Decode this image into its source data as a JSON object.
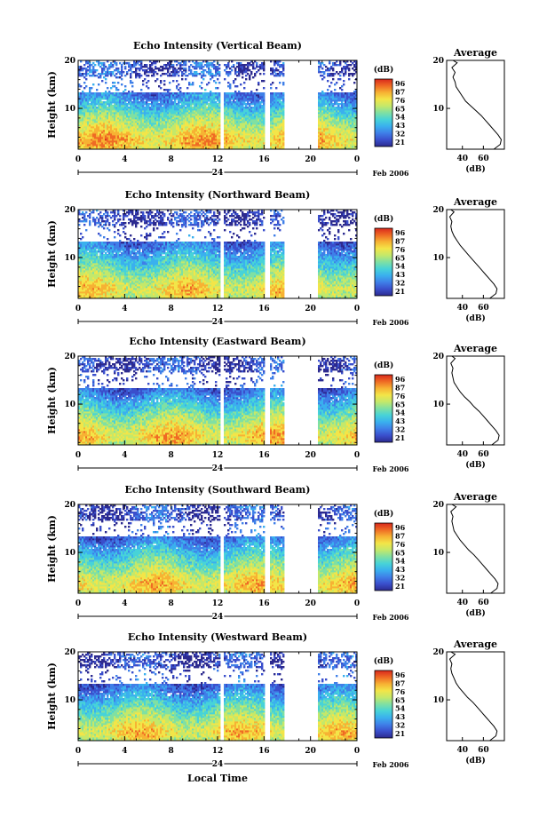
{
  "figure": {
    "xlabel": "Local Time",
    "colors": [
      "#2c2a8f",
      "#3a4fcc",
      "#3f7fe8",
      "#3ab0ee",
      "#47d3d8",
      "#7fe0a3",
      "#c4e86a",
      "#f3e548",
      "#f7b233",
      "#ef6a24",
      "#d9281c"
    ]
  },
  "chart_data": [
    {
      "type": "heatmap",
      "title": "Echo Intensity (Vertical Beam)",
      "ylabel": "Height (km)",
      "xticks": [
        "0",
        "4",
        "8",
        "12",
        "16",
        "20",
        "0"
      ],
      "xlim": [
        0,
        24
      ],
      "yticks": [
        "10",
        "20"
      ],
      "ylim": [
        1.5,
        20
      ],
      "date_day": "24",
      "date_month": "Feb 2006",
      "colorbar_label": "(dB)",
      "colorbar_ticks": [
        "96",
        "87",
        "76",
        "65",
        "54",
        "43",
        "32",
        "21"
      ],
      "no_data_gaps_h": [
        [
          12.2,
          12.6
        ],
        [
          16.1,
          16.5
        ],
        [
          17.7,
          20.7
        ]
      ],
      "profile_title": "Average",
      "profile_xticks": [
        "40",
        "60"
      ],
      "profile_xlabel": "(dB)",
      "profile_yticks": [
        "10",
        "20"
      ],
      "profile_xlim": [
        25,
        80
      ],
      "profile": {
        "heights_km": [
          1.5,
          2.5,
          3.5,
          4.5,
          5.5,
          6.5,
          7.5,
          8.5,
          9.5,
          10.5,
          11.5,
          12.5,
          13.5,
          14.5,
          15.5,
          16.5,
          17.5,
          18.5,
          19.5,
          20
        ],
        "values_db": [
          70,
          76,
          77,
          74,
          70,
          66,
          62,
          58,
          53,
          48,
          43,
          40,
          37,
          34,
          33,
          31,
          33,
          30,
          35,
          31
        ]
      }
    },
    {
      "type": "heatmap",
      "title": "Echo Intensity (Northward Beam)",
      "ylabel": "Height (km)",
      "xticks": [
        "0",
        "4",
        "8",
        "12",
        "16",
        "20",
        "0"
      ],
      "xlim": [
        0,
        24
      ],
      "yticks": [
        "10",
        "20"
      ],
      "ylim": [
        1.5,
        20
      ],
      "date_day": "24",
      "date_month": "Feb 2006",
      "colorbar_label": "(dB)",
      "colorbar_ticks": [
        "96",
        "87",
        "76",
        "65",
        "54",
        "43",
        "32",
        "21"
      ],
      "no_data_gaps_h": [
        [
          12.2,
          12.6
        ],
        [
          16.1,
          16.5
        ],
        [
          17.7,
          20.7
        ]
      ],
      "profile_title": "Average",
      "profile_xticks": [
        "40",
        "60"
      ],
      "profile_xlabel": "(dB)",
      "profile_yticks": [
        "10",
        "20"
      ],
      "profile_xlim": [
        25,
        80
      ],
      "profile": {
        "heights_km": [
          1.5,
          2.5,
          3.5,
          4.5,
          5.5,
          6.5,
          7.5,
          8.5,
          9.5,
          10.5,
          11.5,
          12.5,
          13.5,
          14.5,
          15.5,
          16.5,
          17.5,
          18.5,
          19.5,
          20
        ],
        "values_db": [
          66,
          72,
          73,
          70,
          66,
          62,
          58,
          54,
          50,
          46,
          42,
          38,
          35,
          32,
          30,
          29,
          30,
          28,
          32,
          29
        ]
      }
    },
    {
      "type": "heatmap",
      "title": "Echo Intensity (Eastward Beam)",
      "ylabel": "Height (km)",
      "xticks": [
        "0",
        "4",
        "8",
        "12",
        "16",
        "20",
        "0"
      ],
      "xlim": [
        0,
        24
      ],
      "yticks": [
        "10",
        "20"
      ],
      "ylim": [
        1.5,
        20
      ],
      "date_day": "24",
      "date_month": "Feb 2006",
      "colorbar_label": "(dB)",
      "colorbar_ticks": [
        "96",
        "87",
        "76",
        "65",
        "54",
        "43",
        "32",
        "21"
      ],
      "no_data_gaps_h": [
        [
          12.2,
          12.6
        ],
        [
          16.1,
          16.5
        ],
        [
          17.7,
          20.7
        ]
      ],
      "profile_title": "Average",
      "profile_xticks": [
        "40",
        "60"
      ],
      "profile_xlabel": "(dB)",
      "profile_yticks": [
        "10",
        "20"
      ],
      "profile_xlim": [
        25,
        80
      ],
      "profile": {
        "heights_km": [
          1.5,
          2.5,
          3.5,
          4.5,
          5.5,
          6.5,
          7.5,
          8.5,
          9.5,
          10.5,
          11.5,
          12.5,
          13.5,
          14.5,
          15.5,
          16.5,
          17.5,
          18.5,
          19.5,
          20
        ],
        "values_db": [
          68,
          74,
          75,
          72,
          68,
          64,
          60,
          56,
          51,
          47,
          42,
          38,
          35,
          32,
          31,
          30,
          31,
          29,
          33,
          30
        ]
      }
    },
    {
      "type": "heatmap",
      "title": "Echo Intensity (Southward Beam)",
      "ylabel": "Height (km)",
      "xticks": [
        "0",
        "4",
        "8",
        "12",
        "16",
        "20",
        "0"
      ],
      "xlim": [
        0,
        24
      ],
      "yticks": [
        "10",
        "20"
      ],
      "ylim": [
        1.5,
        20
      ],
      "date_day": "24",
      "date_month": "Feb 2006",
      "colorbar_label": "(dB)",
      "colorbar_ticks": [
        "96",
        "87",
        "76",
        "65",
        "54",
        "43",
        "32",
        "21"
      ],
      "no_data_gaps_h": [
        [
          12.2,
          12.6
        ],
        [
          16.1,
          16.5
        ],
        [
          17.7,
          20.7
        ]
      ],
      "profile_title": "Average",
      "profile_xticks": [
        "40",
        "60"
      ],
      "profile_xlabel": "(dB)",
      "profile_yticks": [
        "10",
        "20"
      ],
      "profile_xlim": [
        25,
        80
      ],
      "profile": {
        "heights_km": [
          1.5,
          2.5,
          3.5,
          4.5,
          5.5,
          6.5,
          7.5,
          8.5,
          9.5,
          10.5,
          11.5,
          12.5,
          13.5,
          14.5,
          15.5,
          16.5,
          17.5,
          18.5,
          19.5,
          20
        ],
        "values_db": [
          67,
          73,
          74,
          71,
          67,
          63,
          59,
          55,
          51,
          46,
          42,
          38,
          35,
          32,
          31,
          30,
          31,
          29,
          34,
          30
        ]
      }
    },
    {
      "type": "heatmap",
      "title": "Echo Intensity (Westward Beam)",
      "ylabel": "Height (km)",
      "xticks": [
        "0",
        "4",
        "8",
        "12",
        "16",
        "20",
        "0"
      ],
      "xlim": [
        0,
        24
      ],
      "yticks": [
        "10",
        "20"
      ],
      "ylim": [
        1.5,
        20
      ],
      "date_day": "24",
      "date_month": "Feb 2006",
      "colorbar_label": "(dB)",
      "colorbar_ticks": [
        "96",
        "87",
        "76",
        "65",
        "54",
        "43",
        "32",
        "21"
      ],
      "no_data_gaps_h": [
        [
          12.2,
          12.6
        ],
        [
          16.1,
          16.5
        ],
        [
          17.7,
          20.7
        ]
      ],
      "profile_title": "Average",
      "profile_xticks": [
        "40",
        "60"
      ],
      "profile_xlabel": "(dB)",
      "profile_yticks": [
        "10",
        "20"
      ],
      "profile_xlim": [
        25,
        80
      ],
      "profile": {
        "heights_km": [
          1.5,
          2.5,
          3.5,
          4.5,
          5.5,
          6.5,
          7.5,
          8.5,
          9.5,
          10.5,
          11.5,
          12.5,
          13.5,
          14.5,
          15.5,
          16.5,
          17.5,
          18.5,
          19.5,
          20
        ],
        "values_db": [
          66,
          72,
          73,
          70,
          66,
          62,
          58,
          54,
          50,
          45,
          41,
          37,
          34,
          32,
          30,
          29,
          30,
          28,
          33,
          29
        ]
      }
    }
  ]
}
